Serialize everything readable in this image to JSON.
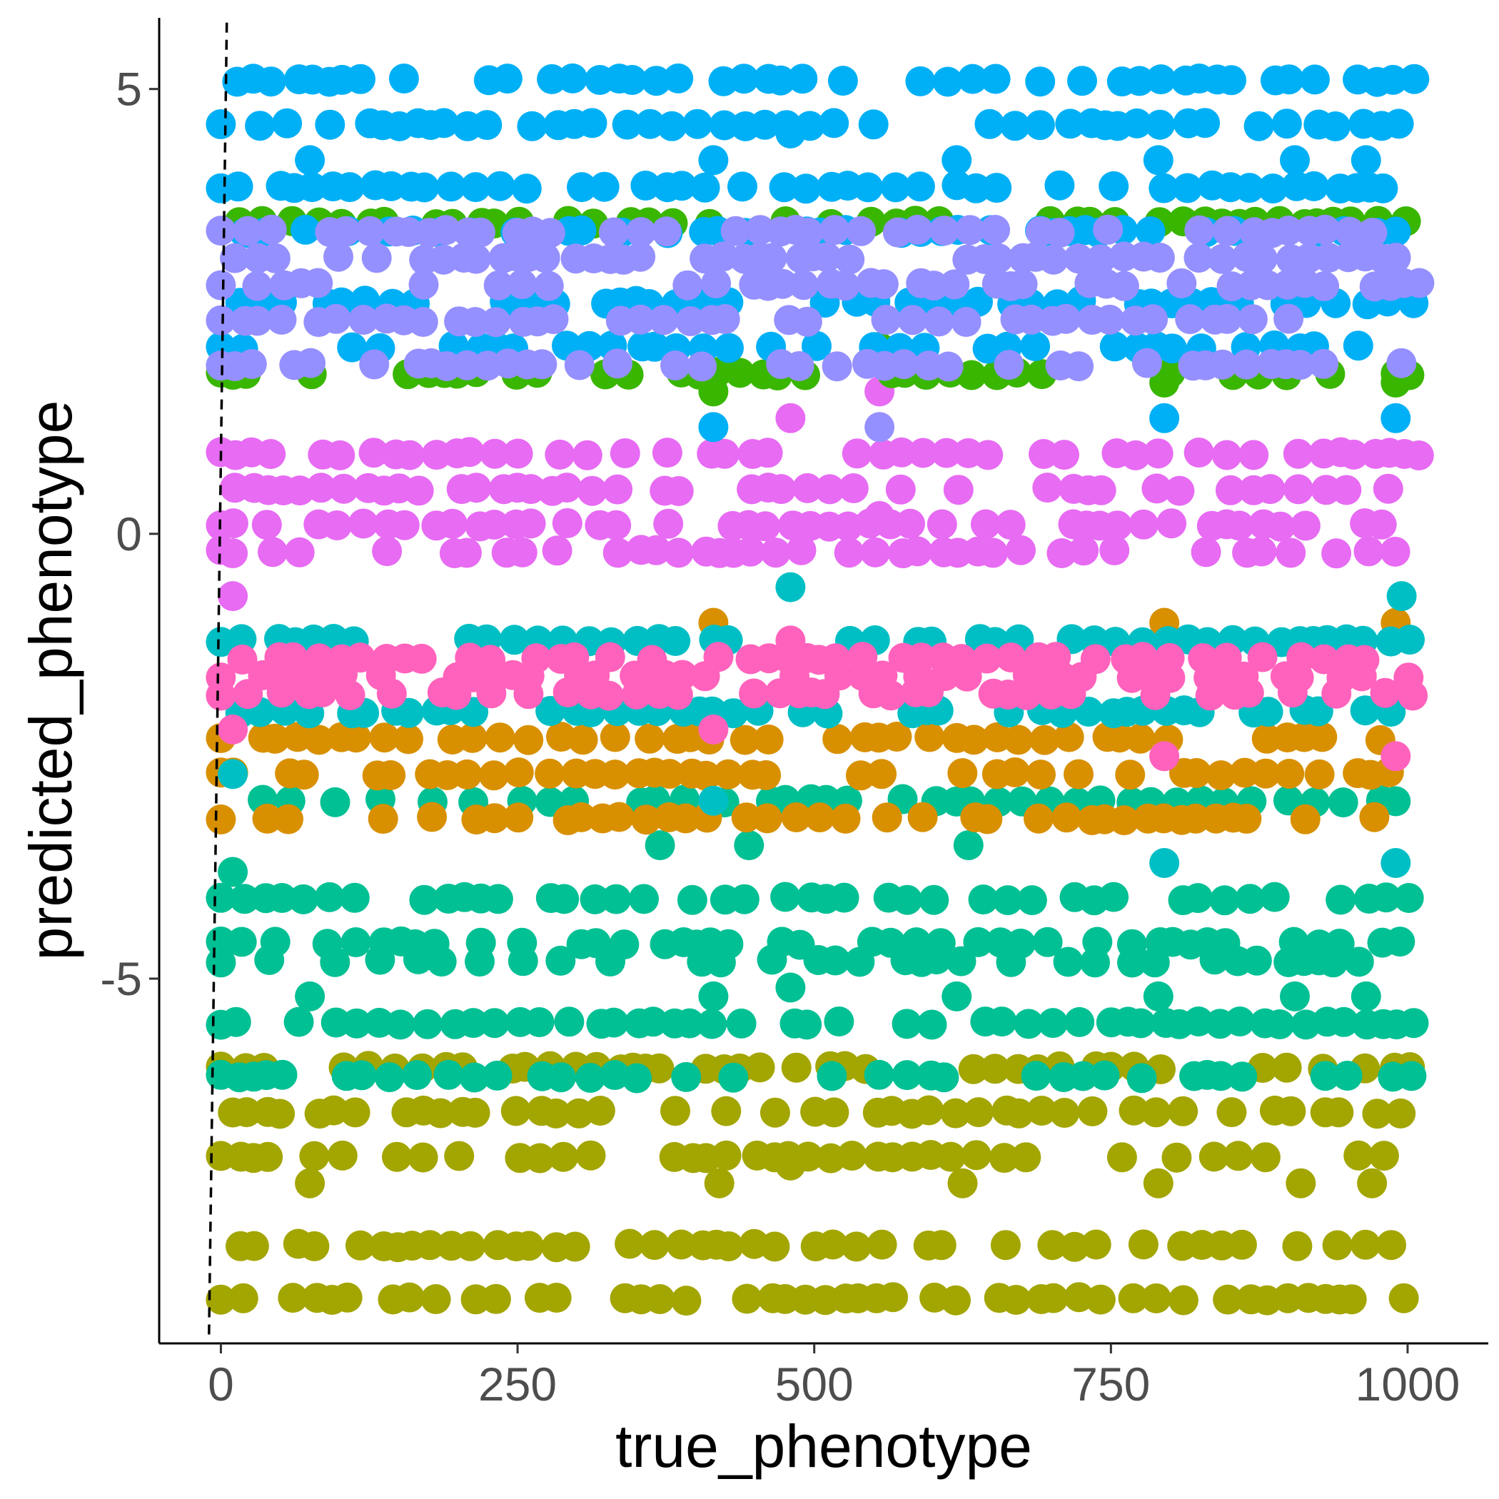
{
  "chart_data": {
    "type": "scatter",
    "xlabel": "true_phenotype",
    "ylabel": "predicted_phenotype",
    "xlim": [
      -52,
      1068
    ],
    "ylim": [
      -9.1,
      5.8
    ],
    "x_ticks": [
      0,
      250,
      500,
      750,
      1000
    ],
    "y_ticks": [
      -5,
      0,
      5
    ],
    "x_tick_labels": [
      "0",
      "250",
      "500",
      "750",
      "1000"
    ],
    "y_tick_labels": [
      "-5",
      "0",
      "5"
    ],
    "grid": false,
    "legend": "none",
    "reference_line": {
      "style": "dashed",
      "from": [
        -10,
        -9.0
      ],
      "to": [
        5,
        5.8
      ]
    },
    "series": [
      {
        "color": "#A3A500",
        "bands": [
          -8.6,
          -8.0,
          -7.0,
          -6.5,
          -6.0
        ],
        "x_range": [
          0,
          1010
        ],
        "outliers": [
          [
            75,
            -7.3
          ],
          [
            420,
            -7.3
          ],
          [
            480,
            -7.1
          ],
          [
            625,
            -7.3
          ],
          [
            790,
            -7.3
          ],
          [
            910,
            -7.3
          ],
          [
            970,
            -7.3
          ]
        ]
      },
      {
        "color": "#00C094",
        "bands": [
          -6.1,
          -5.5,
          -4.8,
          -4.6,
          -4.1,
          -3.0
        ],
        "x_range": [
          0,
          1010
        ],
        "outliers": [
          [
            10,
            -3.8
          ],
          [
            370,
            -3.5
          ],
          [
            445,
            -3.5
          ],
          [
            630,
            -3.5
          ],
          [
            75,
            -5.2
          ],
          [
            415,
            -5.2
          ],
          [
            480,
            -5.1
          ],
          [
            620,
            -5.2
          ],
          [
            790,
            -5.2
          ],
          [
            905,
            -5.2
          ],
          [
            965,
            -5.2
          ]
        ]
      },
      {
        "color": "#D89000",
        "bands": [
          -3.2,
          -2.7,
          -2.3
        ],
        "x_range": [
          0,
          1010
        ],
        "outliers": [
          [
            415,
            -1.0
          ],
          [
            795,
            -1.0
          ],
          [
            990,
            -1.0
          ]
        ]
      },
      {
        "color": "#00BFC4",
        "bands": [
          -2.0,
          -1.2
        ],
        "x_range": [
          0,
          1010
        ],
        "outliers": [
          [
            10,
            -2.7
          ],
          [
            415,
            -3.0
          ],
          [
            480,
            -0.6
          ],
          [
            795,
            -3.7
          ],
          [
            990,
            -3.7
          ],
          [
            995,
            -0.7
          ]
        ]
      },
      {
        "color": "#FF62BC",
        "bands": [
          -1.8,
          -1.6,
          -1.4
        ],
        "x_range": [
          0,
          1010
        ],
        "outliers": [
          [
            10,
            -2.2
          ],
          [
            415,
            -2.2
          ],
          [
            480,
            -1.2
          ],
          [
            795,
            -2.5
          ],
          [
            990,
            -2.5
          ]
        ]
      },
      {
        "color": "#E76BF3",
        "bands": [
          -0.2,
          0.1,
          0.5,
          0.9
        ],
        "x_range": [
          0,
          1010
        ],
        "outliers": [
          [
            10,
            -0.7
          ],
          [
            480,
            1.3
          ],
          [
            555,
            1.6
          ],
          [
            555,
            0.2
          ]
        ]
      },
      {
        "color": "#39B600",
        "bands": [
          1.8,
          3.5
        ],
        "x_range": [
          0,
          1010
        ],
        "outliers": [
          [
            415,
            1.6
          ],
          [
            795,
            1.7
          ],
          [
            990,
            1.7
          ],
          [
            555,
            2.1
          ]
        ]
      },
      {
        "color": "#00B0F6",
        "bands": [
          2.1,
          2.6,
          3.4,
          3.9,
          4.6,
          5.1
        ],
        "x_range": [
          0,
          1010
        ],
        "outliers": [
          [
            75,
            4.2
          ],
          [
            415,
            4.2
          ],
          [
            480,
            4.5
          ],
          [
            620,
            4.2
          ],
          [
            790,
            4.2
          ],
          [
            905,
            4.2
          ],
          [
            965,
            4.2
          ],
          [
            415,
            1.2
          ],
          [
            795,
            1.3
          ],
          [
            990,
            1.3
          ]
        ]
      },
      {
        "color": "#9590FF",
        "bands": [
          1.9,
          2.4,
          2.8,
          3.1,
          3.4
        ],
        "x_range": [
          0,
          1010
        ],
        "outliers": [
          [
            555,
            1.2
          ]
        ]
      }
    ]
  }
}
